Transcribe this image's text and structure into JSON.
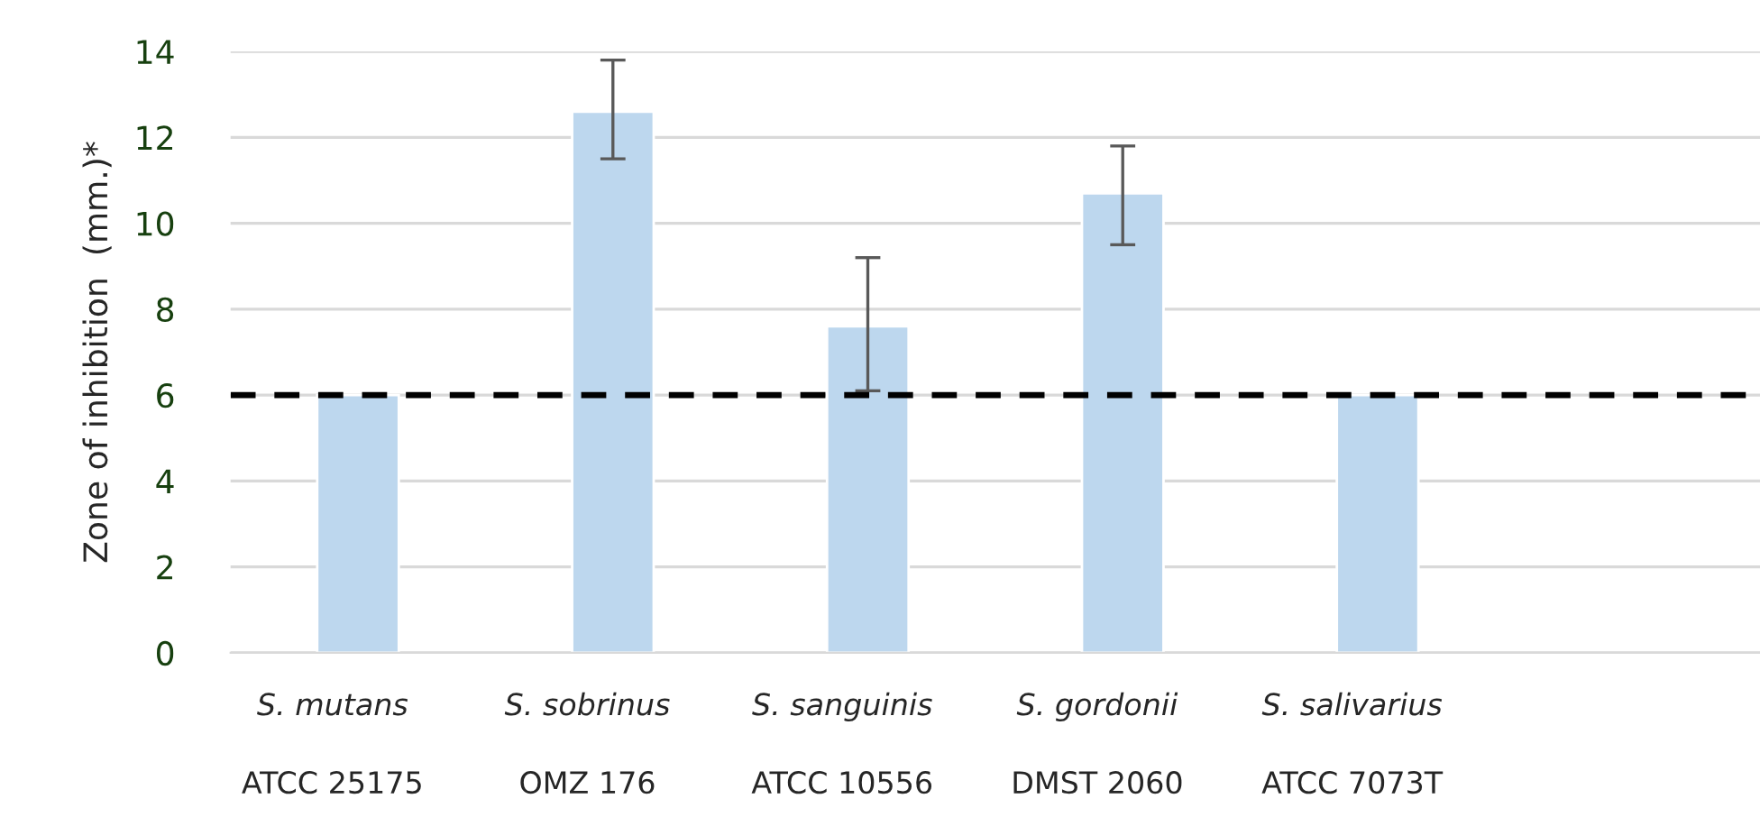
{
  "chart_data": {
    "type": "bar",
    "ylabel": "Zone of inhibition  (mm.)*",
    "categories": [
      "S. mutans\nATCC 25175",
      "S. sobrinus\nOMZ 176",
      "S. sanguinis\nATCC 10556",
      "S. gordonii\nDMST 2060",
      "S. salivarius\nATCC 7073T",
      null
    ],
    "values": [
      6.0,
      12.6,
      7.6,
      10.7,
      6.0,
      null
    ],
    "errors": [
      null,
      [
        11.5,
        13.8
      ],
      [
        6.1,
        9.2
      ],
      [
        9.5,
        11.8
      ],
      null,
      null
    ],
    "color": "#bdd7ee",
    "ylim": [
      0,
      14
    ],
    "yticks": [
      0,
      2,
      4,
      6,
      8,
      10,
      12,
      14
    ],
    "grid": "y",
    "ref_lines": [
      {
        "axis": "y",
        "value": 6,
        "color": "#000000",
        "line_style": "dashed"
      }
    ]
  }
}
